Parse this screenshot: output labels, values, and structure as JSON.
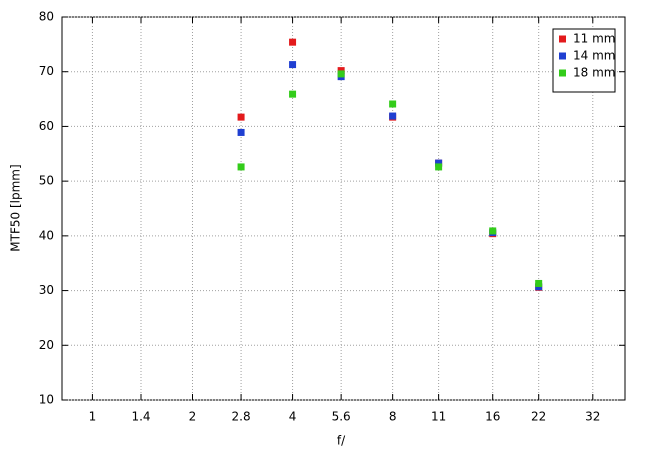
{
  "chart_data": {
    "type": "scatter",
    "x_label": "f/",
    "y_label": "MTF50 [lpmm]",
    "x_log": true,
    "grid": true,
    "legend": "top-right",
    "xlim": [
      0.81,
      40
    ],
    "xticks": [
      1,
      1.4,
      2,
      2.8,
      4,
      5.6,
      8,
      11,
      16,
      22,
      32
    ],
    "ylim": [
      10,
      80
    ],
    "yticks": [
      10,
      20,
      30,
      40,
      50,
      60,
      70,
      80
    ],
    "series": [
      {
        "name": "11 mm",
        "color": "#e31a1c",
        "x": [
          2.8,
          4,
          5.6,
          8,
          11,
          16,
          22
        ],
        "values": [
          61.7,
          75.4,
          70.2,
          61.7,
          53.3,
          40.4,
          30.6
        ]
      },
      {
        "name": "14 mm",
        "color": "#1f3fd1",
        "x": [
          2.8,
          4,
          5.6,
          8,
          11,
          16,
          22
        ],
        "values": [
          58.9,
          71.3,
          69.1,
          61.9,
          53.3,
          40.6,
          30.7
        ]
      },
      {
        "name": "18 mm",
        "color": "#33cc1a",
        "x": [
          2.8,
          4,
          5.6,
          8,
          11,
          16,
          22
        ],
        "values": [
          52.6,
          65.9,
          69.6,
          64.1,
          52.6,
          40.9,
          31.3
        ]
      }
    ]
  }
}
